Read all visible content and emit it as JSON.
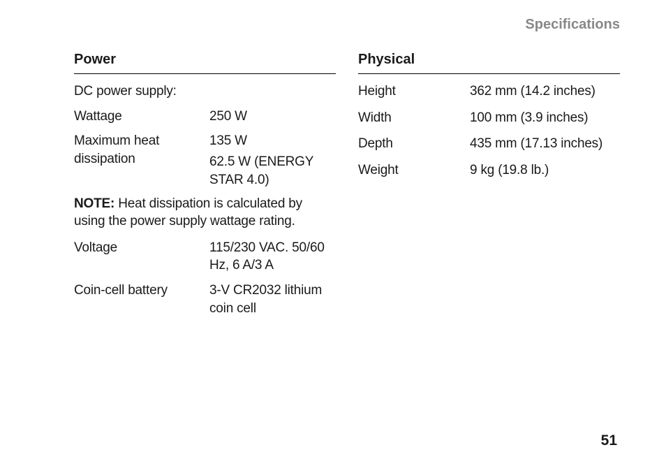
{
  "header": {
    "title": "Specifications"
  },
  "power_section": {
    "title": "Power",
    "dc_supply_label": "DC power supply:",
    "wattage": {
      "label": "Wattage",
      "value": "250 W"
    },
    "max_heat": {
      "label": "Maximum heat dissipation",
      "value1": "135 W",
      "value2": "62.5 W (ENERGY STAR 4.0)"
    },
    "note_prefix": "NOTE:",
    "note_text": " Heat dissipation is calculated by using the power supply wattage rating.",
    "voltage": {
      "label": "Voltage",
      "value": "115/230 VAC. 50/60 Hz, 6 A/3 A"
    },
    "coin_cell": {
      "label": "Coin-cell battery",
      "value": "3-V CR2032 lithium coin cell"
    }
  },
  "physical_section": {
    "title": "Physical",
    "height": {
      "label": "Height",
      "value": "362 mm (14.2 inches)"
    },
    "width": {
      "label": "Width",
      "value": "100 mm (3.9 inches)"
    },
    "depth": {
      "label": "Depth",
      "value": "435 mm (17.13 inches)"
    },
    "weight": {
      "label": "Weight",
      "value": "9 kg (19.8 lb.)"
    }
  },
  "page_number": "51"
}
